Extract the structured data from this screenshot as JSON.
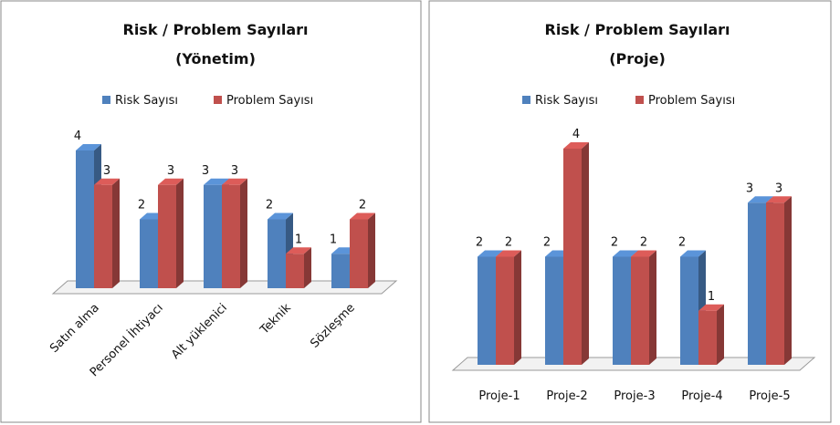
{
  "chart_data": [
    {
      "type": "bar",
      "title": "Risk / Problem Sayıları",
      "subtitle": "(Yönetim)",
      "categories": [
        "Satın alma",
        "Personel İhtiyacı",
        "Alt yüklenici",
        "Teknik",
        "Sözleşme"
      ],
      "series": [
        {
          "name": "Risk Sayısı",
          "color": "#4f81bd",
          "values": [
            4,
            2,
            3,
            2,
            1
          ]
        },
        {
          "name": "Problem Sayısı",
          "color": "#c0504d",
          "values": [
            3,
            3,
            3,
            1,
            2
          ]
        }
      ],
      "legend": "top"
    },
    {
      "type": "bar",
      "title": "Risk / Problem Sayıları",
      "subtitle": "(Proje)",
      "categories": [
        "Proje-1",
        "Proje-2",
        "Proje-3",
        "Proje-4",
        "Proje-5"
      ],
      "series": [
        {
          "name": "Risk Sayısı",
          "color": "#4f81bd",
          "values": [
            2,
            2,
            2,
            2,
            3
          ]
        },
        {
          "name": "Problem Sayısı",
          "color": "#c0504d",
          "values": [
            2,
            4,
            2,
            1,
            3
          ]
        }
      ],
      "legend": "top"
    }
  ]
}
